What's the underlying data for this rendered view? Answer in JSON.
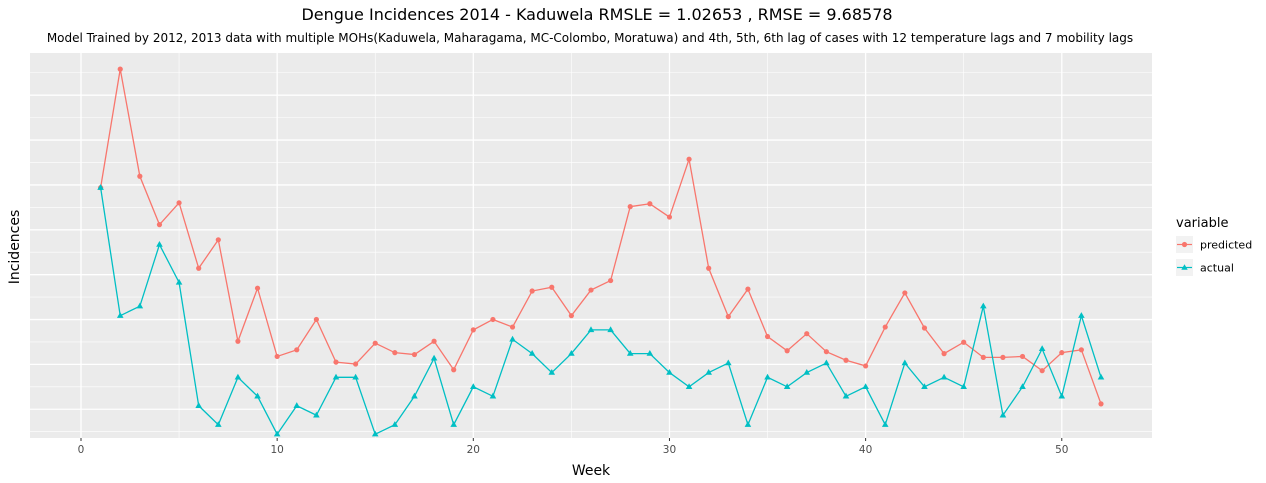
{
  "chart_data": {
    "type": "line",
    "title": "Dengue Incidences 2014 -  Kaduwela  RMSLE =  1.02653 , RMSE =  9.68578",
    "subtitle": "Model Trained by 2012, 2013 data with multiple MOHs(Kaduwela, Maharagama, MC-Colombo, Moratuwa) and 4th, 5th, 6th lag of cases with 12 temperature lags and 7 mobility lags",
    "xlabel": "Week",
    "ylabel": "Incidences",
    "xlim": [
      -2.6,
      54.6
    ],
    "ylim": [
      1.6,
      42.2
    ],
    "x_ticks": [
      0,
      10,
      20,
      30,
      40,
      50
    ],
    "y_tick_labels_shown": false,
    "grid": true,
    "legend": {
      "title": "variable",
      "position": "right"
    },
    "x": [
      1,
      2,
      3,
      4,
      5,
      6,
      7,
      8,
      9,
      10,
      11,
      12,
      13,
      14,
      15,
      16,
      17,
      18,
      19,
      20,
      21,
      22,
      23,
      24,
      25,
      26,
      27,
      28,
      29,
      30,
      31,
      32,
      33,
      34,
      35,
      36,
      37,
      38,
      39,
      40,
      41,
      42,
      43,
      44,
      45,
      46,
      47,
      48,
      49,
      50,
      51,
      52
    ],
    "series": [
      {
        "name": "predicted",
        "color": "#F8766D",
        "marker": "circle",
        "values": [
          28,
          40.5,
          29.2,
          24.1,
          26.4,
          19.5,
          22.5,
          11.8,
          17.4,
          10.2,
          10.9,
          14.1,
          9.6,
          9.4,
          11.6,
          10.6,
          10.4,
          11.8,
          8.8,
          13,
          14.1,
          13.3,
          17.1,
          17.5,
          14.5,
          17.2,
          18.2,
          26,
          26.3,
          24.9,
          31,
          19.5,
          14.4,
          17.3,
          12.3,
          10.8,
          12.6,
          10.7,
          9.8,
          9.2,
          13.3,
          16.9,
          13.2,
          10.5,
          11.7,
          10.1,
          10.1,
          10.2,
          8.7,
          10.6,
          10.9,
          5.2
        ]
      },
      {
        "name": "actual",
        "color": "#00BFC4",
        "marker": "triangle",
        "values": [
          28,
          14.5,
          15.5,
          22,
          18,
          5,
          3,
          8,
          6,
          2,
          5,
          4,
          8,
          8,
          2,
          3,
          6,
          10,
          3,
          7,
          6,
          12,
          10.5,
          8.5,
          10.5,
          13,
          13,
          10.5,
          10.5,
          8.5,
          7,
          8.5,
          9.5,
          3,
          8,
          7,
          8.5,
          9.5,
          6,
          7,
          3,
          9.5,
          7,
          8,
          7,
          15.5,
          4,
          7,
          11,
          6,
          14.5,
          8
        ]
      }
    ]
  }
}
